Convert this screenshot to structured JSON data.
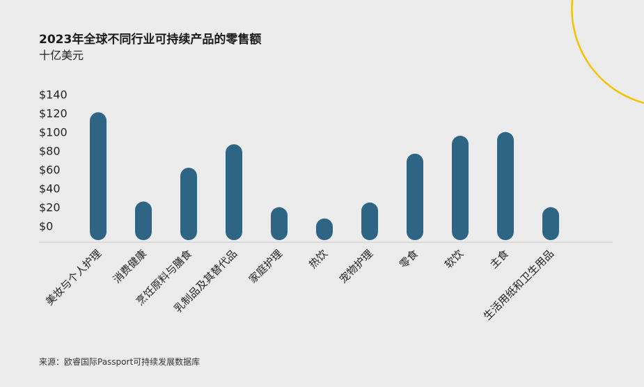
{
  "header": {
    "title": "2023年全球不同行业可持续产品的零售额",
    "subtitle": "十亿美元"
  },
  "footer": {
    "source": "来源：欧睿国际Passport可持续发展数据库"
  },
  "colors": {
    "bar": "#2e6584",
    "accent_arc": "#f2c300",
    "background": "#ebebeb"
  },
  "chart_data": {
    "type": "bar",
    "title": "2023年全球不同行业可持续产品的零售额",
    "ylabel": "十亿美元",
    "xlabel": "",
    "ylim": [
      0,
      140
    ],
    "yticks": [
      0,
      20,
      40,
      60,
      80,
      100,
      120,
      140
    ],
    "ytick_labels": [
      "$0",
      "$20",
      "$40",
      "$60",
      "$80",
      "$100",
      "$120",
      "$140"
    ],
    "categories": [
      "美妆与个人护理",
      "消费健康",
      "烹饪原料与膳食",
      "乳制品及其替代品",
      "家庭护理",
      "热饮",
      "宠物护理",
      "零食",
      "软饮",
      "主食",
      "生活用纸和卫生用品"
    ],
    "values": [
      122,
      27,
      63,
      88,
      21,
      9,
      26,
      78,
      97,
      101,
      21
    ],
    "grid": false,
    "legend": "none"
  }
}
